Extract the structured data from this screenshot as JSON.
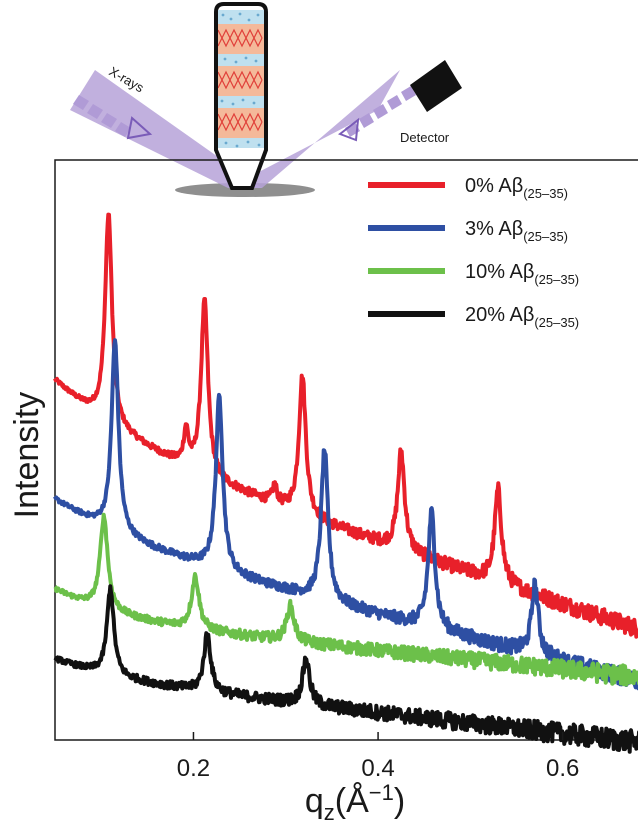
{
  "chart_data": {
    "type": "line",
    "xlabel": "q",
    "xlabel_sub": "z",
    "xlabel_unit": "(Å",
    "xlabel_unit_sup": "−1",
    "xlabel_unit_close": ")",
    "ylabel": "Intensity",
    "xlim": [
      0.05,
      0.7
    ],
    "xticks": [
      0.2,
      0.4,
      0.6
    ],
    "xtick_labels": [
      "0.2",
      "0.4",
      "0.6"
    ],
    "y_ticks_shown": false,
    "legend_position": "top-right",
    "series": [
      {
        "name": "0% Aβ",
        "name_sub": "(25–35)",
        "color": "#e8202a",
        "baseline": 0.62,
        "slope": -0.52,
        "decay_tau": 0.1,
        "decay_amp": 0.1,
        "noise": 0.008,
        "peaks": [
          {
            "q": 0.108,
            "height": 0.36,
            "width": 0.0045
          },
          {
            "q": 0.192,
            "height": 0.06,
            "width": 0.003
          },
          {
            "q": 0.212,
            "height": 0.3,
            "width": 0.0045
          },
          {
            "q": 0.288,
            "height": 0.03,
            "width": 0.003
          },
          {
            "q": 0.318,
            "height": 0.24,
            "width": 0.0045
          },
          {
            "q": 0.425,
            "height": 0.17,
            "width": 0.0045
          },
          {
            "q": 0.53,
            "height": 0.16,
            "width": 0.0045
          }
        ]
      },
      {
        "name": "3% Aβ",
        "name_sub": "(25–35)",
        "color": "#2e4fa3",
        "baseline": 0.415,
        "slope": -0.4,
        "decay_tau": 0.09,
        "decay_amp": 0.06,
        "noise": 0.008,
        "peaks": [
          {
            "q": 0.115,
            "height": 0.33,
            "width": 0.0045
          },
          {
            "q": 0.228,
            "height": 0.3,
            "width": 0.0045
          },
          {
            "q": 0.342,
            "height": 0.26,
            "width": 0.0045
          },
          {
            "q": 0.458,
            "height": 0.2,
            "width": 0.0045
          },
          {
            "q": 0.57,
            "height": 0.12,
            "width": 0.0045
          }
        ]
      },
      {
        "name": "10% Aβ",
        "name_sub": "(25–35)",
        "color": "#6cc04a",
        "baseline": 0.26,
        "slope": -0.16,
        "decay_tau": 0.07,
        "decay_amp": 0.05,
        "noise": 0.009,
        "peaks": [
          {
            "q": 0.103,
            "height": 0.16,
            "width": 0.005
          },
          {
            "q": 0.202,
            "height": 0.09,
            "width": 0.005
          },
          {
            "q": 0.305,
            "height": 0.06,
            "width": 0.005
          }
        ]
      },
      {
        "name": "20% Aβ",
        "name_sub": "(25–35)",
        "color": "#111111",
        "baseline": 0.14,
        "slope": -0.18,
        "decay_tau": 0.07,
        "decay_amp": 0.03,
        "noise": 0.01,
        "peaks": [
          {
            "q": 0.11,
            "height": 0.15,
            "width": 0.0045
          },
          {
            "q": 0.215,
            "height": 0.1,
            "width": 0.0045
          },
          {
            "q": 0.322,
            "height": 0.08,
            "width": 0.0045
          }
        ]
      }
    ]
  },
  "inset": {
    "xray_label": "X-rays",
    "detector_label": "Detector"
  }
}
